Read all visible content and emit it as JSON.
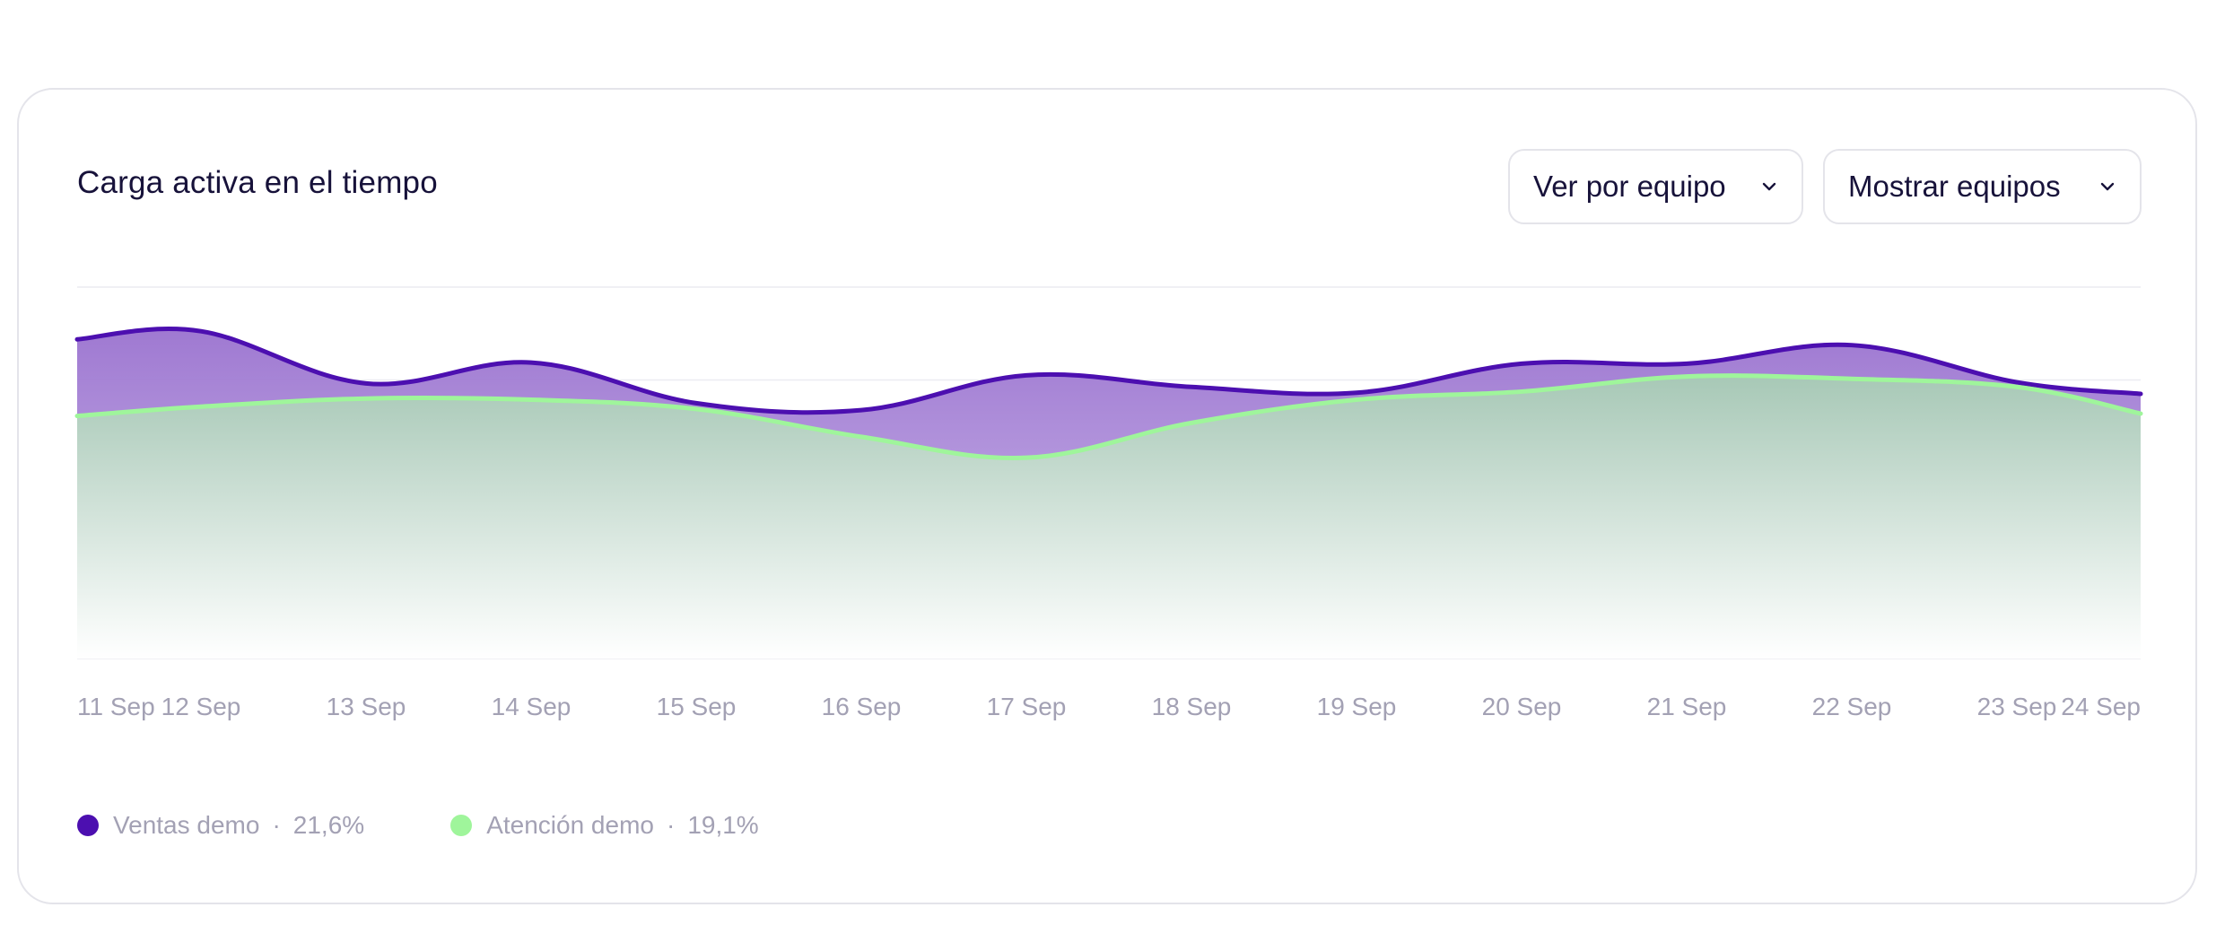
{
  "card": {
    "title": "Carga activa en el tiempo"
  },
  "controls": {
    "view_by": {
      "label": "Ver por equipo",
      "icon": "chevron-down-icon"
    },
    "show_teams": {
      "label": "Mostrar equipos",
      "icon": "chevron-down-icon"
    }
  },
  "colors": {
    "ventas": "#4c0fb0",
    "atencion": "#9ff59b",
    "grid": "#ececf1",
    "ticks": "#a3a1b4"
  },
  "chart_data": {
    "type": "area",
    "title": "Carga activa en el tiempo",
    "xlabel": "",
    "ylabel": "",
    "ylim": [
      0,
      32
    ],
    "grid": true,
    "legend_position": "bottom-left",
    "categories": [
      "11 Sep",
      "12 Sep",
      "13 Sep",
      "14 Sep",
      "15 Sep",
      "16 Sep",
      "17 Sep",
      "18 Sep",
      "19 Sep",
      "20 Sep",
      "21 Sep",
      "22 Sep",
      "23 Sep",
      "24 Sep"
    ],
    "x": [
      11,
      11.75,
      12.75,
      13.75,
      14.75,
      15.75,
      16.75,
      17.75,
      18.75,
      19.75,
      20.75,
      21.75,
      22.75,
      23.5
    ],
    "series": [
      {
        "name": "Ventas demo",
        "summary": "21,6%",
        "values": [
          27.5,
          28.2,
          23.7,
          25.5,
          22.0,
          21.4,
          24.4,
          23.4,
          22.9,
          25.4,
          25.4,
          27.0,
          23.8,
          22.8
        ]
      },
      {
        "name": "Atención demo",
        "summary": "19,1%",
        "values": [
          20.9,
          21.7,
          22.4,
          22.3,
          21.5,
          19.1,
          17.3,
          20.3,
          22.3,
          23.0,
          24.3,
          24.1,
          23.4,
          21.1
        ]
      }
    ]
  }
}
